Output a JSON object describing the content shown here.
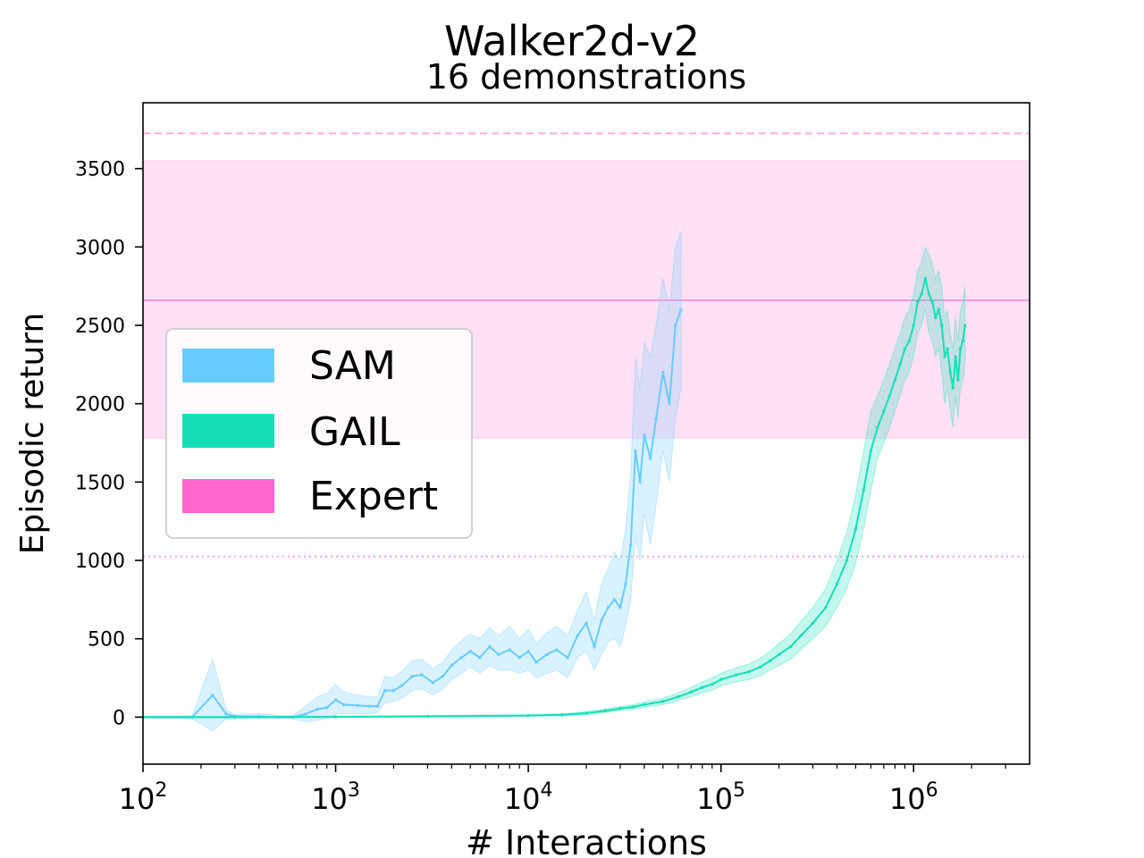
{
  "chart_data": {
    "type": "line",
    "title": "Walker2d-v2",
    "subtitle": "16 demonstrations",
    "xlabel": "# Interactions",
    "ylabel": "Episodic return",
    "xscale": "log",
    "xlim": [
      100,
      4000000
    ],
    "ylim": [
      -300,
      3920
    ],
    "x_ticks": [
      {
        "value": 100,
        "base": "10",
        "exp": "2"
      },
      {
        "value": 1000,
        "base": "10",
        "exp": "3"
      },
      {
        "value": 10000,
        "base": "10",
        "exp": "4"
      },
      {
        "value": 100000,
        "base": "10",
        "exp": "5"
      },
      {
        "value": 1000000,
        "base": "10",
        "exp": "6"
      }
    ],
    "y_ticks": [
      0,
      500,
      1000,
      1500,
      2000,
      2500,
      3000,
      3500
    ],
    "legend_position": "center-left",
    "expert": {
      "mean": 2660,
      "band": [
        1780,
        3550
      ],
      "max": 3725,
      "min": 1025
    },
    "series": [
      {
        "name": "SAM",
        "color": "#66ccff",
        "x": [
          100,
          180,
          230,
          270,
          300,
          400,
          500,
          600,
          700,
          800,
          900,
          1000,
          1100,
          1300,
          1500,
          1650,
          1800,
          2000,
          2200,
          2500,
          2800,
          3200,
          3600,
          4000,
          4500,
          5000,
          5600,
          6300,
          7000,
          8000,
          9000,
          10000,
          11000,
          12500,
          14000,
          16000,
          18000,
          20000,
          22000,
          24000,
          26000,
          28000,
          30000,
          32000,
          34000,
          36000,
          38000,
          40000,
          43000,
          46000,
          50000,
          54000,
          58000,
          62000
        ],
        "values": [
          0,
          0,
          140,
          20,
          5,
          5,
          0,
          0,
          20,
          50,
          60,
          110,
          80,
          75,
          70,
          70,
          170,
          170,
          200,
          260,
          270,
          220,
          260,
          330,
          380,
          420,
          380,
          450,
          400,
          430,
          380,
          420,
          350,
          400,
          430,
          380,
          520,
          600,
          450,
          620,
          700,
          750,
          700,
          850,
          1100,
          1700,
          1500,
          1800,
          1650,
          1900,
          2200,
          2000,
          2500,
          2600
        ],
        "lower": [
          -5,
          -10,
          -90,
          -10,
          -5,
          -10,
          -10,
          -10,
          -30,
          -20,
          -10,
          20,
          20,
          20,
          20,
          30,
          90,
          100,
          120,
          170,
          180,
          140,
          180,
          240,
          280,
          320,
          280,
          330,
          300,
          300,
          280,
          300,
          250,
          280,
          300,
          250,
          380,
          420,
          300,
          400,
          480,
          500,
          450,
          580,
          750,
          1150,
          1000,
          1300,
          1100,
          1350,
          1700,
          1500,
          1900,
          2100
        ],
        "upper": [
          5,
          10,
          370,
          50,
          15,
          25,
          10,
          10,
          70,
          130,
          150,
          210,
          160,
          140,
          130,
          130,
          260,
          250,
          290,
          360,
          370,
          310,
          350,
          430,
          490,
          530,
          500,
          570,
          520,
          580,
          500,
          560,
          470,
          540,
          580,
          520,
          680,
          800,
          620,
          850,
          950,
          1050,
          1000,
          1200,
          1550,
          2300,
          2100,
          2400,
          2300,
          2500,
          2800,
          2600,
          3000,
          3100
        ]
      },
      {
        "name": "GAIL",
        "color": "#15dfb7",
        "x": [
          100,
          300,
          1000,
          3000,
          10000,
          15000,
          20000,
          25000,
          30000,
          35000,
          40000,
          50000,
          60000,
          70000,
          80000,
          90000,
          100000,
          120000,
          140000,
          160000,
          180000,
          200000,
          230000,
          260000,
          300000,
          350000,
          400000,
          450000,
          500000,
          550000,
          600000,
          650000,
          700000,
          750000,
          800000,
          850000,
          900000,
          950000,
          1000000,
          1050000,
          1100000,
          1150000,
          1200000,
          1250000,
          1300000,
          1350000,
          1400000,
          1450000,
          1500000,
          1550000,
          1600000,
          1650000,
          1700000,
          1750000,
          1800000,
          1850000
        ],
        "values": [
          0,
          0,
          2,
          5,
          10,
          15,
          25,
          40,
          55,
          65,
          80,
          100,
          130,
          160,
          190,
          210,
          240,
          270,
          290,
          320,
          360,
          400,
          450,
          520,
          600,
          700,
          850,
          1000,
          1200,
          1450,
          1700,
          1850,
          1950,
          2050,
          2150,
          2250,
          2350,
          2400,
          2500,
          2650,
          2700,
          2800,
          2700,
          2650,
          2550,
          2600,
          2500,
          2300,
          2350,
          2200,
          2100,
          2300,
          2150,
          2350,
          2400,
          2500
        ],
        "lower": [
          -5,
          -5,
          -2,
          0,
          5,
          8,
          15,
          28,
          42,
          50,
          62,
          80,
          105,
          130,
          155,
          170,
          200,
          225,
          240,
          265,
          300,
          330,
          370,
          430,
          500,
          580,
          700,
          820,
          980,
          1200,
          1450,
          1650,
          1750,
          1850,
          1950,
          2050,
          2150,
          2200,
          2300,
          2450,
          2500,
          2600,
          2450,
          2400,
          2300,
          2350,
          2200,
          2000,
          2100,
          1950,
          1850,
          2050,
          1900,
          2100,
          2150,
          2250
        ],
        "upper": [
          5,
          5,
          6,
          10,
          15,
          22,
          35,
          52,
          68,
          80,
          98,
          120,
          155,
          190,
          225,
          250,
          280,
          315,
          340,
          375,
          420,
          470,
          530,
          610,
          700,
          820,
          1000,
          1180,
          1420,
          1700,
          1950,
          2050,
          2150,
          2250,
          2350,
          2450,
          2550,
          2600,
          2700,
          2850,
          2900,
          3000,
          2950,
          2900,
          2800,
          2850,
          2750,
          2550,
          2600,
          2450,
          2350,
          2550,
          2400,
          2600,
          2650,
          2750
        ]
      }
    ],
    "legend": [
      {
        "label": "SAM",
        "color": "#66ccff"
      },
      {
        "label": "GAIL",
        "color": "#15dfb7"
      },
      {
        "label": "Expert",
        "color": "#ff66cc"
      }
    ]
  }
}
